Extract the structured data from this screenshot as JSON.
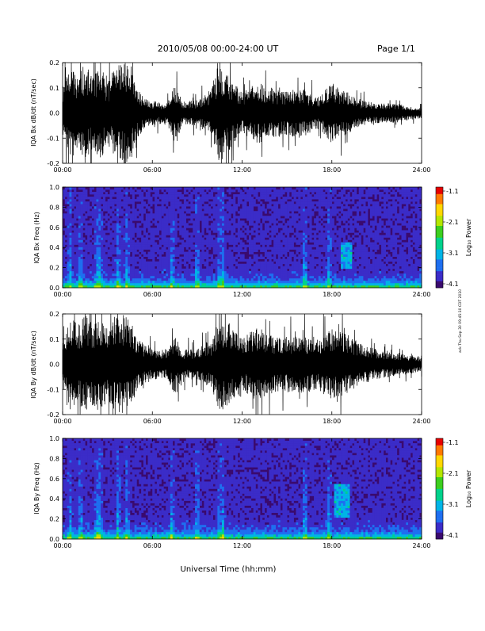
{
  "header": {
    "title": "2010/05/08  00:00-24:00 UT",
    "page": "Page 1/1"
  },
  "xaxis": {
    "label": "Universal Time (hh:mm)",
    "ticks": [
      "00:00",
      "06:00",
      "12:00",
      "18:00",
      "24:00"
    ]
  },
  "side_stamp": "ack Thu Sep 30 09:45:10 CDT 2010",
  "colorbar": {
    "label": "Log₁₀ Power",
    "ticks": [
      "-1.1",
      "-2.1",
      "-3.1",
      "-4.1"
    ],
    "colors": [
      "#000000",
      "#3a0a6e",
      "#3b2cc8",
      "#1e6ff0",
      "#00b4e6",
      "#00d28c",
      "#3ccf1e",
      "#b4e600",
      "#ffd700",
      "#ff7800",
      "#e60000"
    ]
  },
  "chart_data": [
    {
      "type": "line",
      "name": "bx-waveform",
      "ylabel": "IQA Bx dB/dt (nT/sec)",
      "ylim": [
        -0.2,
        0.2
      ],
      "yticks": [
        "0.2",
        "0.1",
        "0.0",
        "-0.1",
        "-0.2"
      ],
      "xlim_hours": [
        0,
        24
      ],
      "amplitude_envelope": {
        "hours": [
          0,
          0.5,
          1,
          1.5,
          2,
          2.5,
          3,
          3.5,
          4,
          4.5,
          5,
          5.5,
          6,
          7,
          7.5,
          8,
          9,
          10,
          10.5,
          11,
          11.5,
          12,
          13,
          14,
          15,
          16,
          17,
          18,
          18.5,
          19,
          20,
          21,
          22,
          23,
          24
        ],
        "amplitude": [
          0.1,
          0.2,
          0.14,
          0.2,
          0.14,
          0.2,
          0.12,
          0.18,
          0.2,
          0.2,
          0.1,
          0.06,
          0.05,
          0.04,
          0.11,
          0.05,
          0.05,
          0.1,
          0.2,
          0.16,
          0.12,
          0.08,
          0.12,
          0.1,
          0.09,
          0.1,
          0.06,
          0.12,
          0.1,
          0.09,
          0.05,
          0.04,
          0.04,
          0.03,
          0.02
        ]
      }
    },
    {
      "type": "heatmap",
      "name": "bx-spectrogram",
      "ylabel": "IQA Bx Freq (Hz)",
      "ylim": [
        0.0,
        1.0
      ],
      "yticks": [
        "1.0",
        "0.8",
        "0.6",
        "0.4",
        "0.2",
        "0.0"
      ],
      "zlim": [
        -4.1,
        -1.1
      ],
      "bright_events_hours": [
        0.5,
        1.2,
        2.3,
        2.5,
        3.7,
        4.3,
        7.3,
        9.0,
        10.5,
        10.7,
        16.2,
        17.8
      ],
      "tone_patch": {
        "hours": [
          18.6,
          19.3
        ],
        "freq_hz": [
          0.2,
          0.45
        ]
      }
    },
    {
      "type": "line",
      "name": "by-waveform",
      "ylabel": "IQA By dB/dt (nT/sec)",
      "ylim": [
        -0.2,
        0.2
      ],
      "yticks": [
        "0.2",
        "0.1",
        "0.0",
        "-0.1",
        "-0.2"
      ],
      "xlim_hours": [
        0,
        24
      ],
      "amplitude_envelope": {
        "hours": [
          0,
          0.5,
          1,
          1.5,
          2,
          2.5,
          3,
          3.5,
          4,
          4.5,
          5,
          5.5,
          6,
          7,
          7.5,
          8,
          9,
          10,
          10.5,
          11,
          11.5,
          12,
          13,
          14,
          15,
          16,
          17,
          18,
          18.5,
          19,
          20,
          21,
          22,
          23,
          24
        ],
        "amplitude": [
          0.1,
          0.2,
          0.16,
          0.2,
          0.16,
          0.2,
          0.14,
          0.2,
          0.2,
          0.18,
          0.1,
          0.08,
          0.06,
          0.06,
          0.12,
          0.06,
          0.06,
          0.1,
          0.2,
          0.17,
          0.14,
          0.1,
          0.15,
          0.12,
          0.11,
          0.12,
          0.1,
          0.14,
          0.13,
          0.12,
          0.08,
          0.06,
          0.05,
          0.04,
          0.03
        ]
      }
    },
    {
      "type": "heatmap",
      "name": "by-spectrogram",
      "ylabel": "IQA By Freq (Hz)",
      "ylim": [
        0.0,
        1.0
      ],
      "yticks": [
        "1.0",
        "0.8",
        "0.6",
        "0.4",
        "0.2",
        "0.0"
      ],
      "zlim": [
        -4.1,
        -1.1
      ],
      "bright_events_hours": [
        0.5,
        1.2,
        2.3,
        2.5,
        3.7,
        4.3,
        7.3,
        9.0,
        10.5,
        10.7,
        16.2,
        17.8
      ],
      "tone_patch": {
        "hours": [
          18.2,
          19.2
        ],
        "freq_hz": [
          0.22,
          0.55
        ]
      }
    }
  ]
}
